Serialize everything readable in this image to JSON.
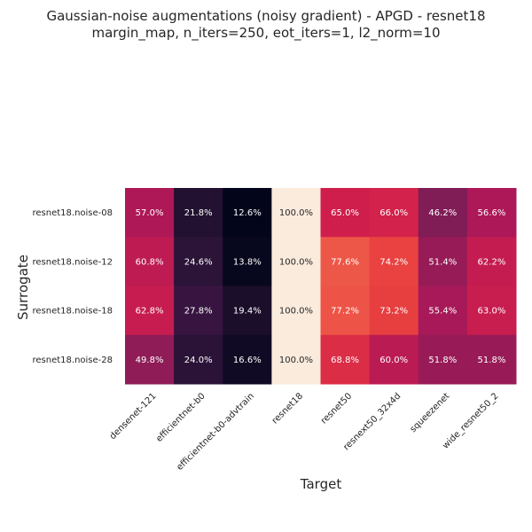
{
  "chart_data": {
    "type": "heatmap",
    "title": "Gaussian-noise augmentations (noisy gradient) - APGD - resnet18",
    "subtitle": "margin_map, n_iters=250, eot_iters=1, l2_norm=10",
    "xlabel": "Target",
    "ylabel": "Surrogate",
    "x_categories": [
      "densenet-121",
      "efficientnet-b0",
      "efficientnet-b0-advtrain",
      "resnet18",
      "resnet50",
      "resnext50_32x4d",
      "squeezenet",
      "wide_resnet50_2"
    ],
    "y_categories": [
      "resnet18.noise-08",
      "resnet18.noise-12",
      "resnet18.noise-18",
      "resnet18.noise-28"
    ],
    "values": [
      [
        57.0,
        21.8,
        12.6,
        100.0,
        65.0,
        66.0,
        46.2,
        56.6
      ],
      [
        60.8,
        24.6,
        13.8,
        100.0,
        77.6,
        74.2,
        51.4,
        62.2
      ],
      [
        62.8,
        27.8,
        19.4,
        100.0,
        77.2,
        73.2,
        55.4,
        63.0
      ],
      [
        49.8,
        24.0,
        16.6,
        100.0,
        68.8,
        60.0,
        51.8,
        51.8
      ]
    ],
    "value_suffix": "%",
    "colormap": "rocket",
    "vmin": 12.6,
    "vmax": 100.0,
    "colorbar": false
  }
}
